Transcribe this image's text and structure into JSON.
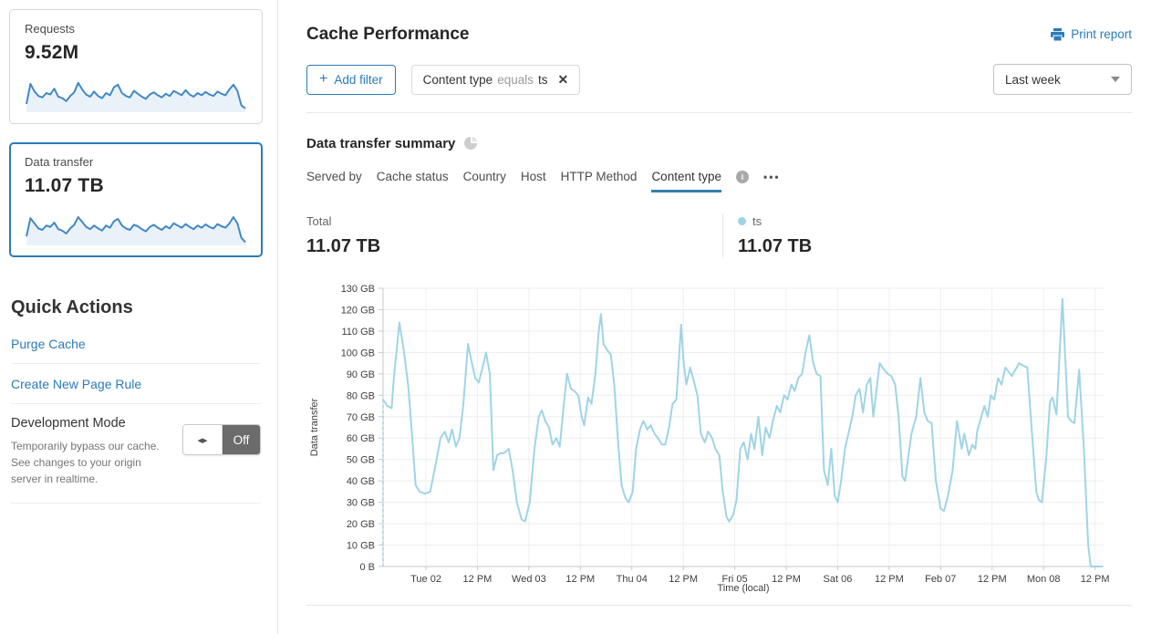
{
  "colors": {
    "accent_blue": "#2b7bb9",
    "chart_line": "#9fd4e6",
    "sparkline_stroke": "#4288c5",
    "sparkline_fill": "#eaf2f9",
    "tab_underline": "#337fad",
    "toggle_off_bg": "#6b6b6b",
    "grid": "#ededed",
    "axis": "#c9c9c9"
  },
  "icons": {
    "plus": "+",
    "close": "✕",
    "toggle_arrows": "◂▸",
    "info": "i",
    "more": "•••"
  },
  "sidebar": {
    "cards": [
      {
        "label": "Requests",
        "value": "9.52M",
        "selected": false,
        "sparkline": [
          20,
          75,
          55,
          42,
          38,
          50,
          46,
          62,
          40,
          36,
          28,
          42,
          52,
          78,
          60,
          46,
          40,
          54,
          42,
          36,
          50,
          44,
          66,
          73,
          50,
          42,
          38,
          56,
          48,
          40,
          34,
          46,
          52,
          44,
          38,
          48,
          42,
          56,
          50,
          44,
          58,
          46,
          40,
          50,
          44,
          53,
          46,
          42,
          54,
          48,
          44,
          60,
          73,
          56,
          16,
          8
        ]
      },
      {
        "label": "Data transfer",
        "value": "11.07 TB",
        "selected": true,
        "sparkline": [
          22,
          72,
          58,
          44,
          40,
          52,
          48,
          60,
          42,
          38,
          30,
          44,
          54,
          75,
          62,
          48,
          42,
          52,
          44,
          38,
          52,
          46,
          64,
          70,
          52,
          44,
          40,
          54,
          50,
          42,
          36,
          48,
          54,
          46,
          40,
          50,
          44,
          58,
          52,
          46,
          56,
          48,
          42,
          52,
          46,
          55,
          48,
          44,
          56,
          50,
          46,
          58,
          75,
          58,
          18,
          6
        ]
      }
    ],
    "quick_actions": {
      "title": "Quick Actions",
      "links": [
        "Purge Cache",
        "Create New Page Rule"
      ],
      "dev_mode": {
        "title": "Development Mode",
        "description": "Temporarily bypass our cache. See changes to your origin server in realtime.",
        "toggle_state": "Off"
      }
    }
  },
  "header": {
    "title": "Cache Performance",
    "print_label": "Print report",
    "add_filter_label": "Add filter",
    "filter_chip": {
      "field": "Content type",
      "operator": "equals",
      "value": "ts"
    },
    "time_range": "Last week"
  },
  "summary": {
    "title": "Data transfer summary",
    "tabs": [
      {
        "label": "Served by",
        "active": false
      },
      {
        "label": "Cache status",
        "active": false
      },
      {
        "label": "Country",
        "active": false
      },
      {
        "label": "Host",
        "active": false
      },
      {
        "label": "HTTP Method",
        "active": false
      },
      {
        "label": "Content type",
        "active": true
      }
    ],
    "total_label": "Total",
    "total_value": "11.07 TB",
    "legend": {
      "series": "ts",
      "value": "11.07 TB",
      "color": "#9fd4e6"
    }
  },
  "chart_data": {
    "type": "line",
    "title": "Data transfer summary",
    "xlabel": "Time (local)",
    "ylabel": "Data transfer",
    "x_range": [
      0,
      168
    ],
    "ylim": [
      0,
      130
    ],
    "y_unit": "GB",
    "y_ticks": [
      0,
      10,
      20,
      30,
      40,
      50,
      60,
      70,
      80,
      90,
      100,
      110,
      120,
      130
    ],
    "y_tick_labels": [
      "0 B",
      "10 GB",
      "20 GB",
      "30 GB",
      "40 GB",
      "50 GB",
      "60 GB",
      "70 GB",
      "80 GB",
      "90 GB",
      "100 GB",
      "110 GB",
      "120 GB",
      "130 GB"
    ],
    "x_tick_hours": [
      10,
      22,
      34,
      46,
      58,
      70,
      82,
      94,
      106,
      118,
      130,
      142,
      154,
      166
    ],
    "x_tick_labels": [
      "Tue 02",
      "12 PM",
      "Wed 03",
      "12 PM",
      "Thu 04",
      "12 PM",
      "Fri 05",
      "12 PM",
      "Sat 06",
      "12 PM",
      "Feb 07",
      "12 PM",
      "Mon 08",
      "12 PM"
    ],
    "grid": true,
    "leading_dashed": true,
    "series": [
      {
        "name": "ts",
        "color": "#9fd4e6",
        "total": "11.07 TB",
        "points_unit": "[hours_from_start, GB]",
        "points": [
          [
            0,
            78
          ],
          [
            1,
            75
          ],
          [
            2,
            74
          ],
          [
            2.5,
            88
          ],
          [
            3.8,
            114
          ],
          [
            4.9,
            100
          ],
          [
            5.9,
            84
          ],
          [
            6.8,
            60
          ],
          [
            7.6,
            38
          ],
          [
            8.5,
            35
          ],
          [
            9.8,
            34
          ],
          [
            11,
            35
          ],
          [
            12.3,
            48
          ],
          [
            13.4,
            60
          ],
          [
            14.4,
            63
          ],
          [
            15.3,
            58
          ],
          [
            16.1,
            64
          ],
          [
            17,
            56
          ],
          [
            17.8,
            60
          ],
          [
            18.7,
            75
          ],
          [
            19.8,
            104
          ],
          [
            20.6,
            96
          ],
          [
            21.5,
            88
          ],
          [
            22.3,
            86
          ],
          [
            23.2,
            93
          ],
          [
            24,
            100
          ],
          [
            24.9,
            90
          ],
          [
            25.7,
            45
          ],
          [
            26.6,
            52
          ],
          [
            27.4,
            53
          ],
          [
            28.2,
            53
          ],
          [
            29.3,
            55
          ],
          [
            30.2,
            45
          ],
          [
            31.2,
            30
          ],
          [
            32.3,
            22
          ],
          [
            33.1,
            21
          ],
          [
            34.2,
            30
          ],
          [
            35.3,
            55
          ],
          [
            36.3,
            70
          ],
          [
            37,
            73
          ],
          [
            37.8,
            68
          ],
          [
            38.7,
            65
          ],
          [
            39.5,
            57
          ],
          [
            40.4,
            60
          ],
          [
            41.2,
            56
          ],
          [
            42.1,
            75
          ],
          [
            42.9,
            90
          ],
          [
            43.8,
            83
          ],
          [
            44.6,
            82
          ],
          [
            45.5,
            80
          ],
          [
            46.3,
            70
          ],
          [
            46.9,
            66
          ],
          [
            47.8,
            79
          ],
          [
            48.6,
            76
          ],
          [
            49.5,
            90
          ],
          [
            50.3,
            110
          ],
          [
            50.8,
            118
          ],
          [
            51.4,
            104
          ],
          [
            52.3,
            101
          ],
          [
            53.1,
            99
          ],
          [
            53.9,
            85
          ],
          [
            54.8,
            58
          ],
          [
            55.6,
            38
          ],
          [
            56.5,
            32
          ],
          [
            57.3,
            30
          ],
          [
            58.2,
            35
          ],
          [
            59,
            55
          ],
          [
            59.9,
            64
          ],
          [
            60.7,
            68
          ],
          [
            61.6,
            64
          ],
          [
            62.4,
            66
          ],
          [
            63.3,
            62
          ],
          [
            64.1,
            60
          ],
          [
            65,
            57
          ],
          [
            65.8,
            57
          ],
          [
            66.7,
            65
          ],
          [
            67.5,
            76
          ],
          [
            68.4,
            78
          ],
          [
            69.5,
            113
          ],
          [
            70.1,
            95
          ],
          [
            70.7,
            85
          ],
          [
            71.6,
            93
          ],
          [
            72.4,
            87
          ],
          [
            73.3,
            80
          ],
          [
            74.1,
            62
          ],
          [
            75,
            58
          ],
          [
            75.8,
            63
          ],
          [
            76.7,
            60
          ],
          [
            77.5,
            55
          ],
          [
            78.4,
            52
          ],
          [
            79.2,
            35
          ],
          [
            80.1,
            23
          ],
          [
            80.7,
            21
          ],
          [
            81.6,
            24
          ],
          [
            82.4,
            31
          ],
          [
            83.3,
            55
          ],
          [
            84.1,
            58
          ],
          [
            85,
            50
          ],
          [
            85.8,
            62
          ],
          [
            86.6,
            55
          ],
          [
            87.5,
            70
          ],
          [
            88.4,
            52
          ],
          [
            89.2,
            65
          ],
          [
            90.1,
            60
          ],
          [
            90.9,
            68
          ],
          [
            91.8,
            75
          ],
          [
            92.6,
            72
          ],
          [
            93.5,
            80
          ],
          [
            94.3,
            78
          ],
          [
            95.2,
            85
          ],
          [
            96,
            82
          ],
          [
            96.8,
            88
          ],
          [
            97.7,
            90
          ],
          [
            98.5,
            100
          ],
          [
            99.4,
            108
          ],
          [
            100.3,
            95
          ],
          [
            101.1,
            90
          ],
          [
            102,
            89
          ],
          [
            102.8,
            45
          ],
          [
            103.7,
            38
          ],
          [
            104.5,
            55
          ],
          [
            105.3,
            33
          ],
          [
            106,
            30
          ],
          [
            106.8,
            40
          ],
          [
            107.7,
            55
          ],
          [
            108.5,
            62
          ],
          [
            109.4,
            70
          ],
          [
            110.2,
            80
          ],
          [
            111.1,
            83
          ],
          [
            111.9,
            72
          ],
          [
            112.8,
            85
          ],
          [
            113.6,
            88
          ],
          [
            114.3,
            70
          ],
          [
            115.8,
            95
          ],
          [
            116.8,
            92
          ],
          [
            117.7,
            90
          ],
          [
            118.5,
            89
          ],
          [
            119.4,
            85
          ],
          [
            120.2,
            70
          ],
          [
            121.1,
            42
          ],
          [
            121.7,
            40
          ],
          [
            123.2,
            62
          ],
          [
            124.3,
            70
          ],
          [
            125.3,
            88
          ],
          [
            126.2,
            72
          ],
          [
            127,
            68
          ],
          [
            127.9,
            67
          ],
          [
            128.9,
            40
          ],
          [
            130,
            27
          ],
          [
            130.8,
            26
          ],
          [
            131.7,
            33
          ],
          [
            132.8,
            45
          ],
          [
            133.8,
            68
          ],
          [
            134.9,
            55
          ],
          [
            135.5,
            62
          ],
          [
            136.6,
            52
          ],
          [
            137.4,
            57
          ],
          [
            138.1,
            55
          ],
          [
            138.5,
            63
          ],
          [
            140.2,
            75
          ],
          [
            141,
            70
          ],
          [
            141.7,
            80
          ],
          [
            142.5,
            78
          ],
          [
            143.4,
            88
          ],
          [
            144.2,
            85
          ],
          [
            145.1,
            93
          ],
          [
            146.6,
            89
          ],
          [
            148.3,
            95
          ],
          [
            149.1,
            94
          ],
          [
            150.2,
            93
          ],
          [
            151.4,
            60
          ],
          [
            152.3,
            35
          ],
          [
            152.9,
            31
          ],
          [
            153.6,
            30
          ],
          [
            154.6,
            50
          ],
          [
            155.5,
            77
          ],
          [
            156.1,
            79
          ],
          [
            157,
            71
          ],
          [
            158.4,
            125
          ],
          [
            159.7,
            70
          ],
          [
            160.4,
            68
          ],
          [
            161.2,
            67
          ],
          [
            162.3,
            92
          ],
          [
            163.4,
            55
          ],
          [
            164.4,
            10
          ],
          [
            165,
            0
          ],
          [
            166.3,
            0
          ],
          [
            167.6,
            0
          ]
        ]
      }
    ]
  }
}
